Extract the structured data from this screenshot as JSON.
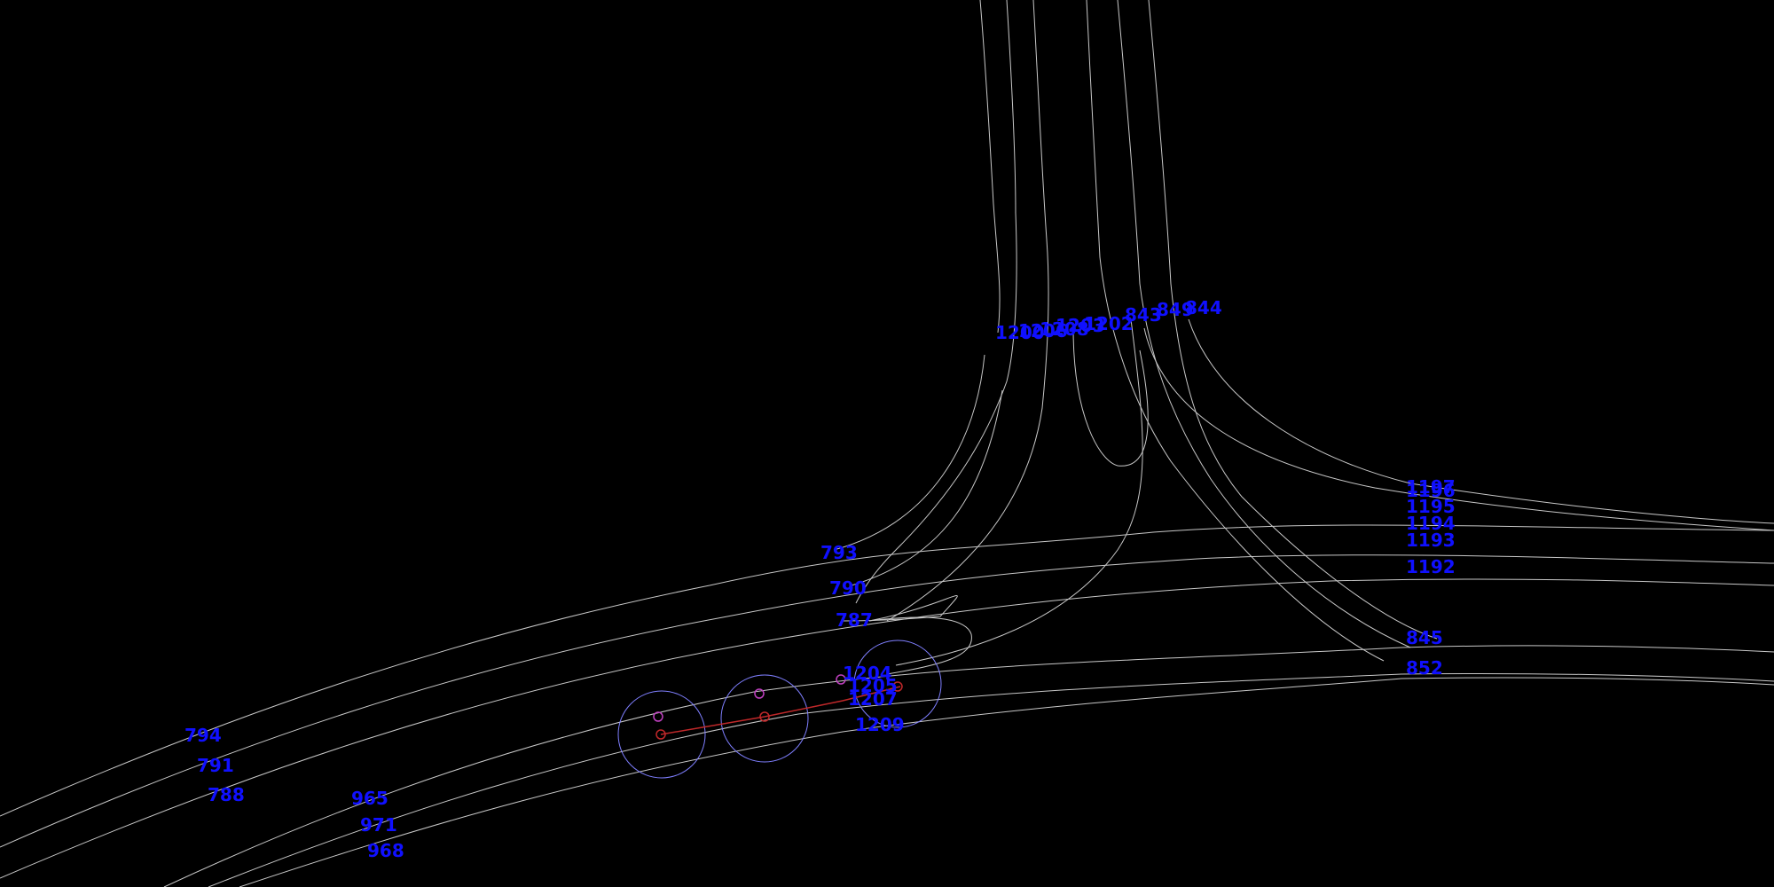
{
  "map": {
    "background": "#000000",
    "lane_color": "#c8c8c8",
    "label_color": "#1010ff",
    "radius_color": "#7f7fff",
    "trajectory_color": "#c0282a",
    "point_color": "#c0282a",
    "alt_point_color": "#c040c0"
  },
  "lane_labels": [
    {
      "id": "l-1200",
      "text": "1200"
    },
    {
      "id": "l-1206",
      "text": "1206"
    },
    {
      "id": "l-1208",
      "text": "1208"
    },
    {
      "id": "l-1203",
      "text": "1203"
    },
    {
      "id": "l-1202",
      "text": "1202"
    },
    {
      "id": "l-843",
      "text": "843"
    },
    {
      "id": "l-849",
      "text": "849"
    },
    {
      "id": "l-844",
      "text": "844"
    },
    {
      "id": "l-1197",
      "text": "1197"
    },
    {
      "id": "l-1196",
      "text": "1196"
    },
    {
      "id": "l-1195",
      "text": "1195"
    },
    {
      "id": "l-1194",
      "text": "1194"
    },
    {
      "id": "l-1193",
      "text": "1193"
    },
    {
      "id": "l-1192",
      "text": "1192"
    },
    {
      "id": "l-845",
      "text": "845"
    },
    {
      "id": "l-852",
      "text": "852"
    },
    {
      "id": "l-793",
      "text": "793"
    },
    {
      "id": "l-790",
      "text": "790"
    },
    {
      "id": "l-787",
      "text": "787"
    },
    {
      "id": "l-1204",
      "text": "1204"
    },
    {
      "id": "l-1205",
      "text": "1205"
    },
    {
      "id": "l-1207",
      "text": "1207"
    },
    {
      "id": "l-1209",
      "text": "1209"
    },
    {
      "id": "l-794",
      "text": "794"
    },
    {
      "id": "l-791",
      "text": "791"
    },
    {
      "id": "l-788",
      "text": "788"
    },
    {
      "id": "l-965",
      "text": "965"
    },
    {
      "id": "l-971",
      "text": "971"
    },
    {
      "id": "l-968",
      "text": "968"
    }
  ]
}
